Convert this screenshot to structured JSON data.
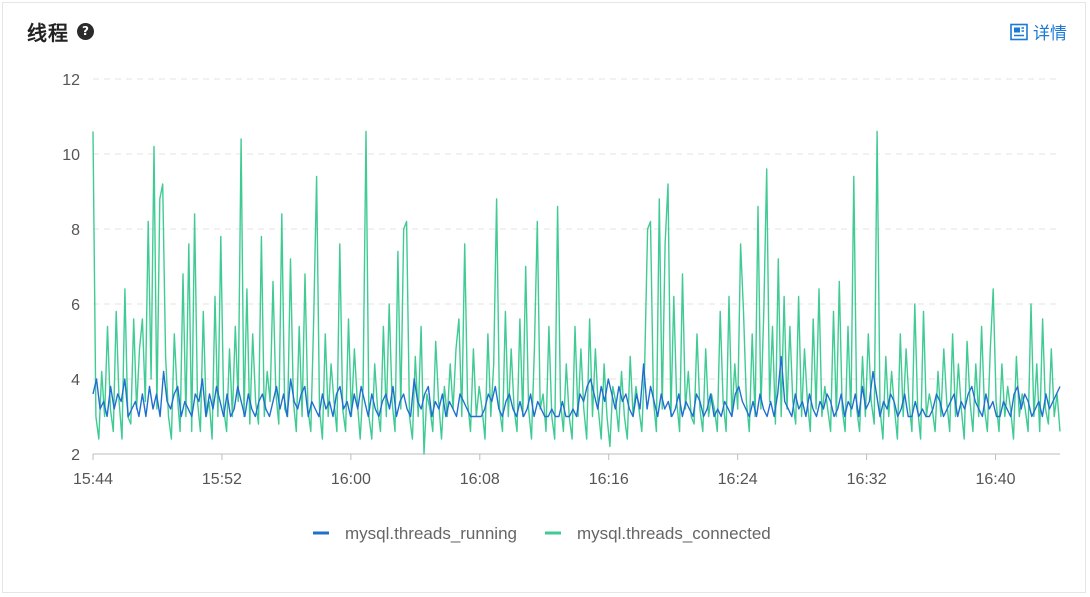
{
  "header": {
    "title": "线程",
    "detail_label": "详情"
  },
  "colors": {
    "running": "#1f6fd1",
    "connected": "#3fcb93",
    "grid": "#e3e3e3",
    "axis": "#bdbdbd"
  },
  "chart_data": {
    "type": "line",
    "title": "线程",
    "xlabel": "",
    "ylabel": "",
    "ylim": [
      2,
      12
    ],
    "yticks": [
      2,
      4,
      6,
      8,
      10,
      12
    ],
    "xlim_minutes": [
      "15:44",
      "16:44"
    ],
    "xticks": [
      "15:44",
      "15:52",
      "16:00",
      "16:08",
      "16:16",
      "16:24",
      "16:32",
      "16:40"
    ],
    "grid": true,
    "legend_position": "bottom-center",
    "series": [
      {
        "name": "mysql.threads_running",
        "color": "#1f6fd1",
        "values": [
          3.6,
          4,
          3.2,
          3.4,
          3,
          3.8,
          3.2,
          3.6,
          3.4,
          4,
          3,
          3.2,
          3.4,
          3,
          3.6,
          3,
          3.8,
          3.2,
          3.6,
          3,
          4.2,
          3.4,
          3.2,
          3.6,
          3.8,
          3,
          3.4,
          3.2,
          3,
          3.6,
          3.4,
          4,
          3,
          3.6,
          3.2,
          3.8,
          3.4,
          3,
          3.6,
          3,
          3.2,
          3.8,
          3.4,
          3,
          3.6,
          3.2,
          3,
          3.4,
          3.6,
          3.2,
          3,
          3.4,
          3.8,
          3.2,
          3.6,
          3,
          4,
          3.4,
          3.2,
          3.6,
          3.8,
          3,
          3.4,
          3.2,
          3,
          3.6,
          3.2,
          3.4,
          3,
          3.6,
          3.8,
          3.2,
          3.4,
          3,
          3.6,
          3.2,
          3.8,
          3.4,
          3,
          3.6,
          3.2,
          3,
          3.4,
          3.6,
          3.2,
          3.8,
          3,
          3.4,
          3.6,
          3.2,
          3,
          4,
          3.4,
          3.2,
          3.6,
          3.8,
          3,
          3.4,
          3.2,
          3.6,
          3,
          3.4,
          3.2,
          3,
          3.6,
          3.4,
          3.2,
          3,
          3,
          3,
          3,
          3.2,
          3.6,
          3.4,
          3.8,
          3.2,
          3,
          3.4,
          3.6,
          3.2,
          3,
          3.4,
          3,
          3.2,
          3.6,
          3,
          3.4,
          3.2,
          3,
          3,
          3.2,
          3,
          3,
          3.4,
          3,
          3,
          3.2,
          3,
          3.6,
          3.4,
          3.8,
          4,
          3.6,
          3.2,
          3.8,
          3.4,
          4,
          3.6,
          3.2,
          3.8,
          3.4,
          3.6,
          3.2,
          3,
          3.6,
          3.2,
          4.4,
          3.2,
          3.8,
          3.4,
          3,
          3.6,
          3.2,
          3.4,
          3,
          3.2,
          3.6,
          3,
          3.4,
          3.2,
          3,
          3.6,
          3.4,
          3,
          3.2,
          3.6,
          3,
          3.2,
          3,
          3.4,
          3.2,
          3,
          3.6,
          3.8,
          3.4,
          3.2,
          3,
          3.4,
          3,
          3.6,
          3.2,
          3,
          3.4,
          3,
          3.6,
          4.6,
          3.4,
          3.2,
          3,
          3.6,
          3.2,
          3.4,
          3,
          3.6,
          3.2,
          3,
          3.4,
          3.2,
          3.6,
          3.4,
          3,
          3.2,
          3.6,
          3,
          3.4,
          3.2,
          3.6,
          3,
          3.8,
          3.2,
          3.4,
          4.2,
          3.6,
          3,
          3.4,
          3.2,
          3.6,
          3.4,
          3,
          3.2,
          3.6,
          3,
          3,
          3.4,
          3,
          3.2,
          3,
          3,
          3.2,
          3.6,
          3.4,
          3,
          3.2,
          3.4,
          3.6,
          3,
          3.4,
          3.2,
          3.6,
          3.8,
          3.4,
          3.2,
          3,
          3.6,
          3.2,
          3.4,
          3,
          3,
          3.4,
          3.2,
          3,
          3.6,
          3.8,
          3.2,
          3.6,
          3.4,
          3,
          3.2,
          3.4,
          3,
          3.6,
          3.2,
          3.4,
          3.6,
          3.8
        ]
      },
      {
        "name": "mysql.threads_connected",
        "color": "#3fcb93",
        "values": [
          10.6,
          3,
          2.4,
          4.2,
          3,
          5.4,
          3.2,
          2.6,
          5.8,
          3.4,
          2.4,
          6.4,
          3,
          2.8,
          5.6,
          3.2,
          4.8,
          5.6,
          3.4,
          8.2,
          4,
          10.2,
          3.2,
          8.8,
          9.2,
          4.6,
          3,
          2.4,
          5.2,
          3.6,
          2.6,
          6.8,
          3,
          7.6,
          2.6,
          8.4,
          3.4,
          2.6,
          5.8,
          3,
          3.4,
          2.4,
          6.2,
          3,
          7.8,
          3.2,
          2.6,
          4.8,
          3,
          5.4,
          3.4,
          10.4,
          3,
          6.4,
          2.8,
          5.2,
          3.4,
          2.8,
          7.8,
          3,
          4.2,
          3.4,
          6.6,
          3.6,
          2.8,
          8.4,
          3.2,
          3,
          7.2,
          3.4,
          2.6,
          5.4,
          3,
          6.8,
          3.2,
          2.6,
          5.6,
          9.4,
          3.2,
          2.4,
          5.2,
          3,
          4.4,
          3.4,
          2.6,
          7.6,
          3.2,
          2.6,
          5.6,
          3,
          4.8,
          3.4,
          2.4,
          3.8,
          10.6,
          3,
          2.4,
          4.4,
          3.2,
          2.6,
          5.4,
          3,
          6,
          3.4,
          2.6,
          7.4,
          3.2,
          8,
          8.2,
          3,
          2.4,
          4.6,
          3,
          5.4,
          2,
          3.6,
          3.2,
          2.6,
          5,
          3.4,
          2.4,
          3.8,
          3,
          4.4,
          3.2,
          4.8,
          5.6,
          3,
          7.6,
          3.4,
          2.6,
          4.8,
          3,
          3.8,
          3.2,
          2.4,
          5.2,
          3,
          4.4,
          8.8,
          3.2,
          2.6,
          5.8,
          3,
          4.8,
          3.2,
          2.6,
          5.6,
          3,
          7,
          3.2,
          2.4,
          4.8,
          8.2,
          3.2,
          3.6,
          2.6,
          5.4,
          3,
          2.4,
          8.6,
          3.4,
          2.6,
          4.4,
          3,
          2.4,
          5.4,
          3,
          4.8,
          3.2,
          2.4,
          5.6,
          3,
          4.8,
          3.2,
          2.4,
          4.4,
          3,
          2.2,
          3.8,
          3.4,
          2.6,
          4.2,
          3,
          2.4,
          4.6,
          3,
          3.8,
          3.2,
          2.6,
          4.4,
          8,
          8.2,
          3.4,
          2.6,
          8.8,
          3.2,
          7.6,
          9.2,
          3,
          6.2,
          3.4,
          2.6,
          6.8,
          3.2,
          4.2,
          3,
          2.8,
          5.2,
          3.2,
          2.6,
          4.8,
          3,
          3.6,
          3.2,
          2.6,
          5.8,
          3.4,
          2.6,
          6.2,
          3,
          4.4,
          3.2,
          7.6,
          5.8,
          3.4,
          2.6,
          5.2,
          3,
          8.6,
          3.2,
          5.8,
          9.6,
          3.4,
          5.4,
          2.8,
          7.2,
          3,
          6.2,
          3.2,
          5.4,
          3.4,
          2.8,
          6.2,
          3,
          4.8,
          3.4,
          2.6,
          5.6,
          3.2,
          6.4,
          3,
          3.8,
          3.2,
          2.6,
          5.8,
          3,
          6.6,
          3.2,
          2.6,
          5.4,
          3,
          9.4,
          3.2,
          2.6,
          4.6,
          3,
          5.2,
          3.4,
          2.8,
          10.6,
          3.2,
          2.4,
          4.6,
          3,
          4.2,
          3.2,
          2.4,
          5.2,
          3,
          4.8,
          3.4,
          2.6,
          6,
          3.2,
          2.4,
          5.8,
          3,
          3.6,
          3.2,
          2.6,
          4.2,
          3,
          4.8,
          3.4,
          2.6,
          5.2,
          3,
          4.4,
          3.2,
          2.4,
          5,
          3.4,
          2.6,
          4.4,
          3,
          5.4,
          3.2,
          2.6,
          4.8,
          6.4,
          3.4,
          2.6,
          4.4,
          3,
          3.8,
          3.2,
          2.4,
          4.6,
          3,
          3.6,
          3.2,
          2.6,
          6,
          3,
          4.4,
          2.6,
          5.6,
          3.2,
          2.8,
          4.8,
          3,
          3.6,
          2.6
        ]
      }
    ]
  }
}
